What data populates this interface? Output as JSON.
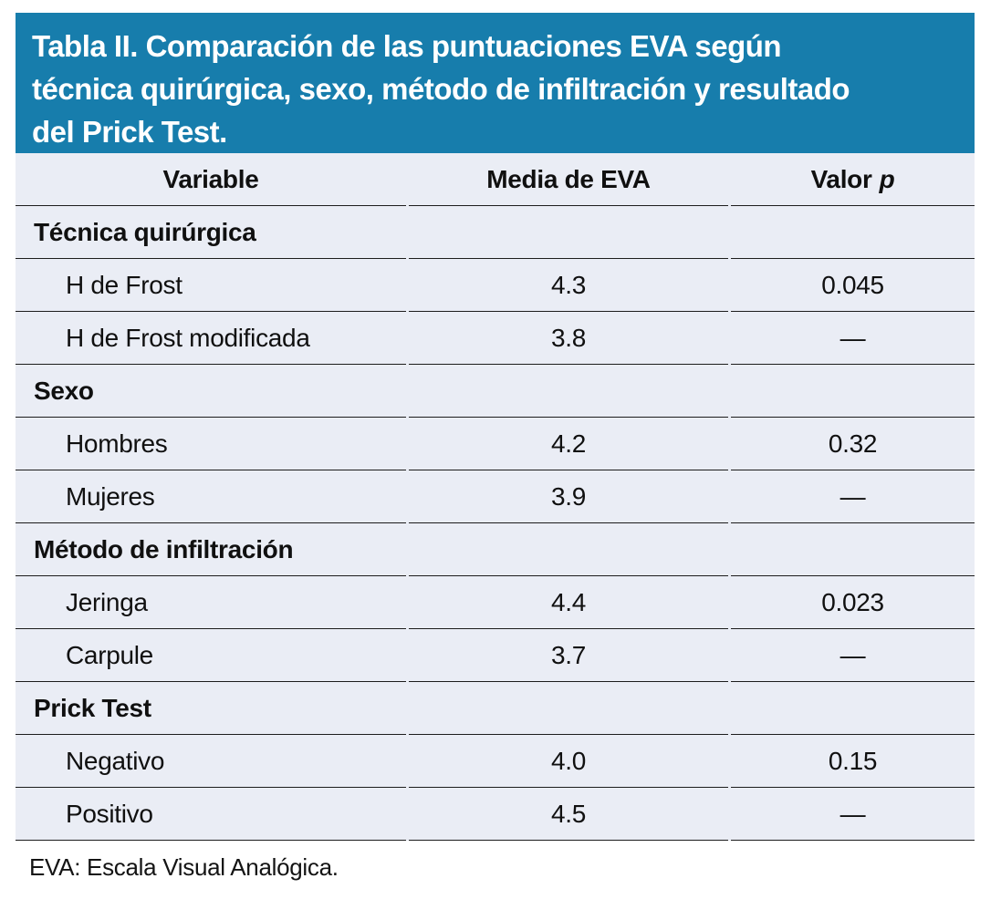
{
  "title": {
    "lines": [
      "Tabla II. Comparación de las puntuaciones EVA según",
      "técnica quirúrgica, sexo, método de infiltración y resultado",
      "del Prick Test."
    ],
    "full_text": "Tabla II. Comparación de las puntuaciones EVA según técnica quirúrgica, sexo, método de infiltración y resultado del Prick Test."
  },
  "colors": {
    "band_background": "#177dac",
    "row_background": "#eaedf5",
    "separator_line": "#1d1d1d",
    "title_text": "#ffffff",
    "body_text": "#101010"
  },
  "table": {
    "header": {
      "variable": "Variable",
      "media": "Media de EVA",
      "valor": "Valor",
      "p": "p"
    },
    "rows": [
      {
        "type": "section",
        "label": "Técnica quirúrgica",
        "media": "",
        "p": ""
      },
      {
        "type": "data",
        "label": "H de Frost",
        "media": "4.3",
        "p": "0.045"
      },
      {
        "type": "data",
        "label": "H de Frost modificada",
        "media": "3.8",
        "p": "—"
      },
      {
        "type": "section",
        "label": "Sexo",
        "media": "",
        "p": ""
      },
      {
        "type": "data",
        "label": "Hombres",
        "media": "4.2",
        "p": "0.32"
      },
      {
        "type": "data",
        "label": "Mujeres",
        "media": "3.9",
        "p": "—"
      },
      {
        "type": "section",
        "label": "Método de infiltración",
        "media": "",
        "p": ""
      },
      {
        "type": "data",
        "label": "Jeringa",
        "media": "4.4",
        "p": "0.023"
      },
      {
        "type": "data",
        "label": "Carpule",
        "media": "3.7",
        "p": "—"
      },
      {
        "type": "section",
        "label": "Prick Test",
        "media": "",
        "p": ""
      },
      {
        "type": "data",
        "label": "Negativo",
        "media": "4.0",
        "p": "0.15"
      },
      {
        "type": "data",
        "label": "Positivo",
        "media": "4.5",
        "p": "—"
      }
    ]
  },
  "footnote": "EVA: Escala Visual Analógica."
}
